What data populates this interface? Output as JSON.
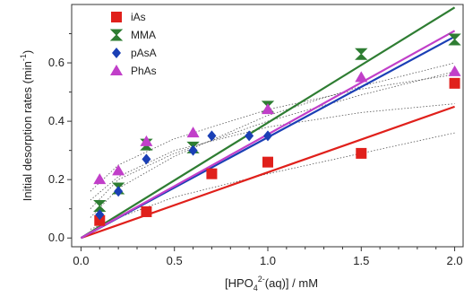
{
  "chart_data": {
    "type": "scatter",
    "title": "",
    "xlabel": "[HPO4 2-(aq)] / mM",
    "ylabel": "Initial desorption rates (min-1)",
    "xlim": [
      -0.05,
      2.05
    ],
    "ylim": [
      -0.03,
      0.8
    ],
    "x_ticks": [
      "0.0",
      "0.5",
      "1.0",
      "1.5",
      "2.0"
    ],
    "y_ticks": [
      "0.0",
      "0.2",
      "0.4",
      "0.6"
    ],
    "legend_position": "top-left",
    "grid": false,
    "series": [
      {
        "name": "iAs",
        "marker": "square",
        "color": "#e0201b",
        "x": [
          0.1,
          0.35,
          0.7,
          1.0,
          1.5,
          2.0
        ],
        "y": [
          0.06,
          0.09,
          0.22,
          0.26,
          0.29,
          0.53
        ],
        "fit_line": {
          "x": [
            0.0,
            2.0
          ],
          "y": [
            0.0,
            0.45
          ]
        }
      },
      {
        "name": "MMA",
        "marker": "hourglass",
        "color": "#2e7d32",
        "x": [
          0.1,
          0.2,
          0.35,
          0.6,
          1.0,
          1.5,
          2.0
        ],
        "y": [
          0.11,
          0.17,
          0.32,
          0.31,
          0.45,
          0.63,
          0.68
        ],
        "fit_line": {
          "x": [
            0.0,
            2.0
          ],
          "y": [
            0.0,
            0.79
          ]
        }
      },
      {
        "name": "pAsA",
        "marker": "diamond",
        "color": "#1a3fb5",
        "x": [
          0.1,
          0.2,
          0.35,
          0.6,
          0.7,
          0.9,
          1.0
        ],
        "y": [
          0.08,
          0.16,
          0.27,
          0.3,
          0.35,
          0.35,
          0.35
        ],
        "fit_line": {
          "x": [
            0.0,
            2.0
          ],
          "y": [
            0.0,
            0.69
          ]
        }
      },
      {
        "name": "PhAs",
        "marker": "triangle",
        "color": "#c13fc9",
        "x": [
          0.1,
          0.2,
          0.35,
          0.6,
          1.0,
          1.5,
          2.0
        ],
        "y": [
          0.2,
          0.23,
          0.33,
          0.36,
          0.44,
          0.55,
          0.57
        ],
        "fit_line": {
          "x": [
            0.0,
            2.0
          ],
          "y": [
            0.0,
            0.71
          ]
        }
      }
    ],
    "dotted_curves": [
      [
        [
          0.05,
          0.1
        ],
        [
          0.2,
          0.2
        ],
        [
          0.5,
          0.29
        ],
        [
          1.0,
          0.4
        ],
        [
          1.5,
          0.49
        ],
        [
          2.0,
          0.57
        ]
      ],
      [
        [
          0.05,
          0.07
        ],
        [
          0.2,
          0.17
        ],
        [
          0.5,
          0.28
        ],
        [
          1.0,
          0.42
        ],
        [
          1.5,
          0.52
        ],
        [
          2.0,
          0.6
        ]
      ],
      [
        [
          0.05,
          0.16
        ],
        [
          0.2,
          0.25
        ],
        [
          0.5,
          0.34
        ],
        [
          1.0,
          0.44
        ],
        [
          1.5,
          0.51
        ],
        [
          2.0,
          0.56
        ]
      ],
      [
        [
          0.05,
          0.13
        ],
        [
          0.2,
          0.21
        ],
        [
          0.5,
          0.3
        ],
        [
          1.0,
          0.38
        ],
        [
          1.5,
          0.43
        ],
        [
          2.0,
          0.46
        ]
      ],
      [
        [
          0.05,
          0.03
        ],
        [
          0.2,
          0.07
        ],
        [
          0.5,
          0.14
        ],
        [
          1.0,
          0.22
        ],
        [
          1.5,
          0.29
        ],
        [
          2.0,
          0.36
        ]
      ]
    ]
  }
}
